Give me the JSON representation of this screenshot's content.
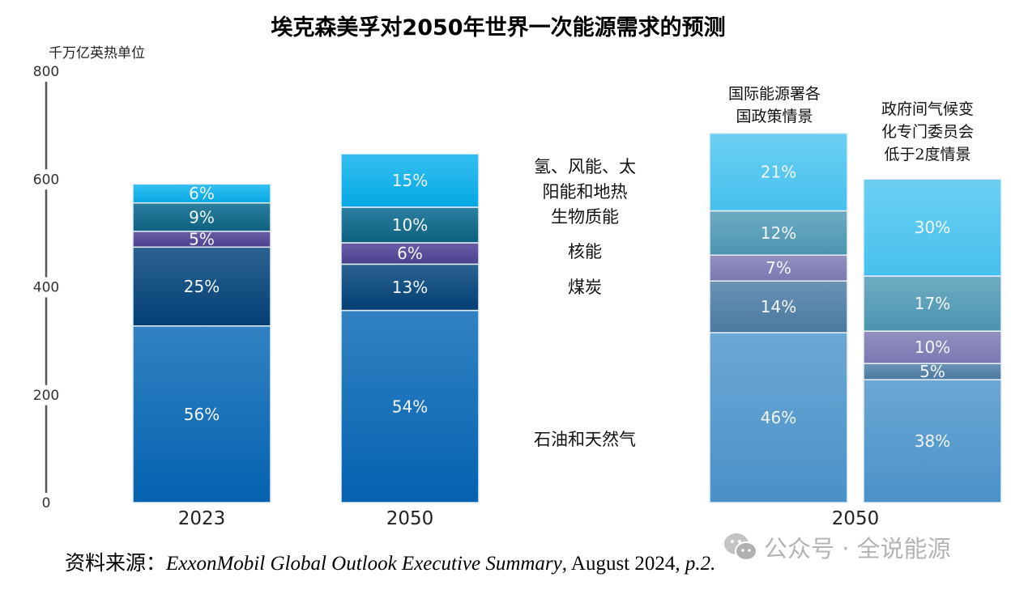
{
  "chart_data": {
    "type": "bar",
    "stacked": true,
    "title": "埃克森美孚对2050年世界一次能源需求的预测",
    "ylabel": "千万亿英热单位",
    "ylim": [
      0,
      800
    ],
    "yticks": [
      "0",
      "200",
      "400",
      "600",
      "800"
    ],
    "grid": false,
    "categories": [
      "2023",
      "2050",
      "国际能源署各国政策情景",
      "政府间气候变化专门委员会低于2度情景"
    ],
    "x_tick_labels": [
      "2023",
      "2050",
      "2050"
    ],
    "scenario_labels": [
      {
        "lines": [
          "国际能源署各",
          "国政策情景"
        ]
      },
      {
        "lines": [
          "政府间气候变",
          "化专门委员会",
          "低于2度情景"
        ]
      }
    ],
    "totals": [
      585,
      660,
      685,
      600
    ],
    "series": [
      {
        "name": "石油和天然气",
        "key": "oil_gas",
        "values_pct": [
          56,
          54,
          46,
          38
        ]
      },
      {
        "name": "煤炭",
        "key": "coal",
        "values_pct": [
          25,
          13,
          14,
          5
        ]
      },
      {
        "name": "核能",
        "key": "nuclear",
        "values_pct": [
          5,
          6,
          7,
          10
        ]
      },
      {
        "name": "生物质能",
        "key": "biomass",
        "values_pct": [
          9,
          10,
          12,
          17
        ]
      },
      {
        "name": "氢、风能、太阳能和地热",
        "key": "renewables",
        "values_pct": [
          6,
          15,
          21,
          30
        ]
      }
    ],
    "segment_labels": [
      [
        "56%",
        "25%",
        "5%",
        "9%",
        "6%"
      ],
      [
        "54%",
        "13%",
        "6%",
        "10%",
        "15%"
      ],
      [
        "46%",
        "14%",
        "7%",
        "12%",
        "21%"
      ],
      [
        "38%",
        "5%",
        "10%",
        "17%",
        "30%"
      ]
    ],
    "legend": {
      "placement": "center-between-groups",
      "entries": [
        {
          "lines": [
            "氢、风能、太",
            "阳能和地热"
          ]
        },
        {
          "lines": [
            "生物质能"
          ]
        },
        {
          "lines": [
            "核能"
          ]
        },
        {
          "lines": [
            "煤炭"
          ]
        },
        {
          "lines": [
            "石油和天然气"
          ]
        }
      ]
    },
    "colors": {
      "exxon": {
        "oil_gas": [
          "#3282c2",
          "#0462b0"
        ],
        "coal": [
          "#2a6391",
          "#043e74"
        ],
        "nuclear": [
          "#6a5fa6",
          "#4a3f8d"
        ],
        "biomass": [
          "#2c7fa0",
          "#0e6080"
        ],
        "renewables": [
          "#35bff0",
          "#05a8e4"
        ]
      },
      "scenario": {
        "oil_gas": [
          "#6ca7d4",
          "#4a91c9"
        ],
        "coal": [
          "#6b93b5",
          "#4a78a0"
        ],
        "nuclear": [
          "#9390c2",
          "#7b77b1"
        ],
        "biomass": [
          "#6facc2",
          "#4b94b0"
        ],
        "renewables": [
          "#6ccff2",
          "#45c0ee"
        ]
      }
    }
  },
  "source": {
    "prefix": "资料来源：",
    "italic": "ExxonMobil Global Outlook Executive Summary",
    "suffix": ", August 2024, ",
    "page_italic": "p.2."
  },
  "watermark": {
    "text": "公众号 · 全说能源",
    "icon": "wechat-icon"
  }
}
